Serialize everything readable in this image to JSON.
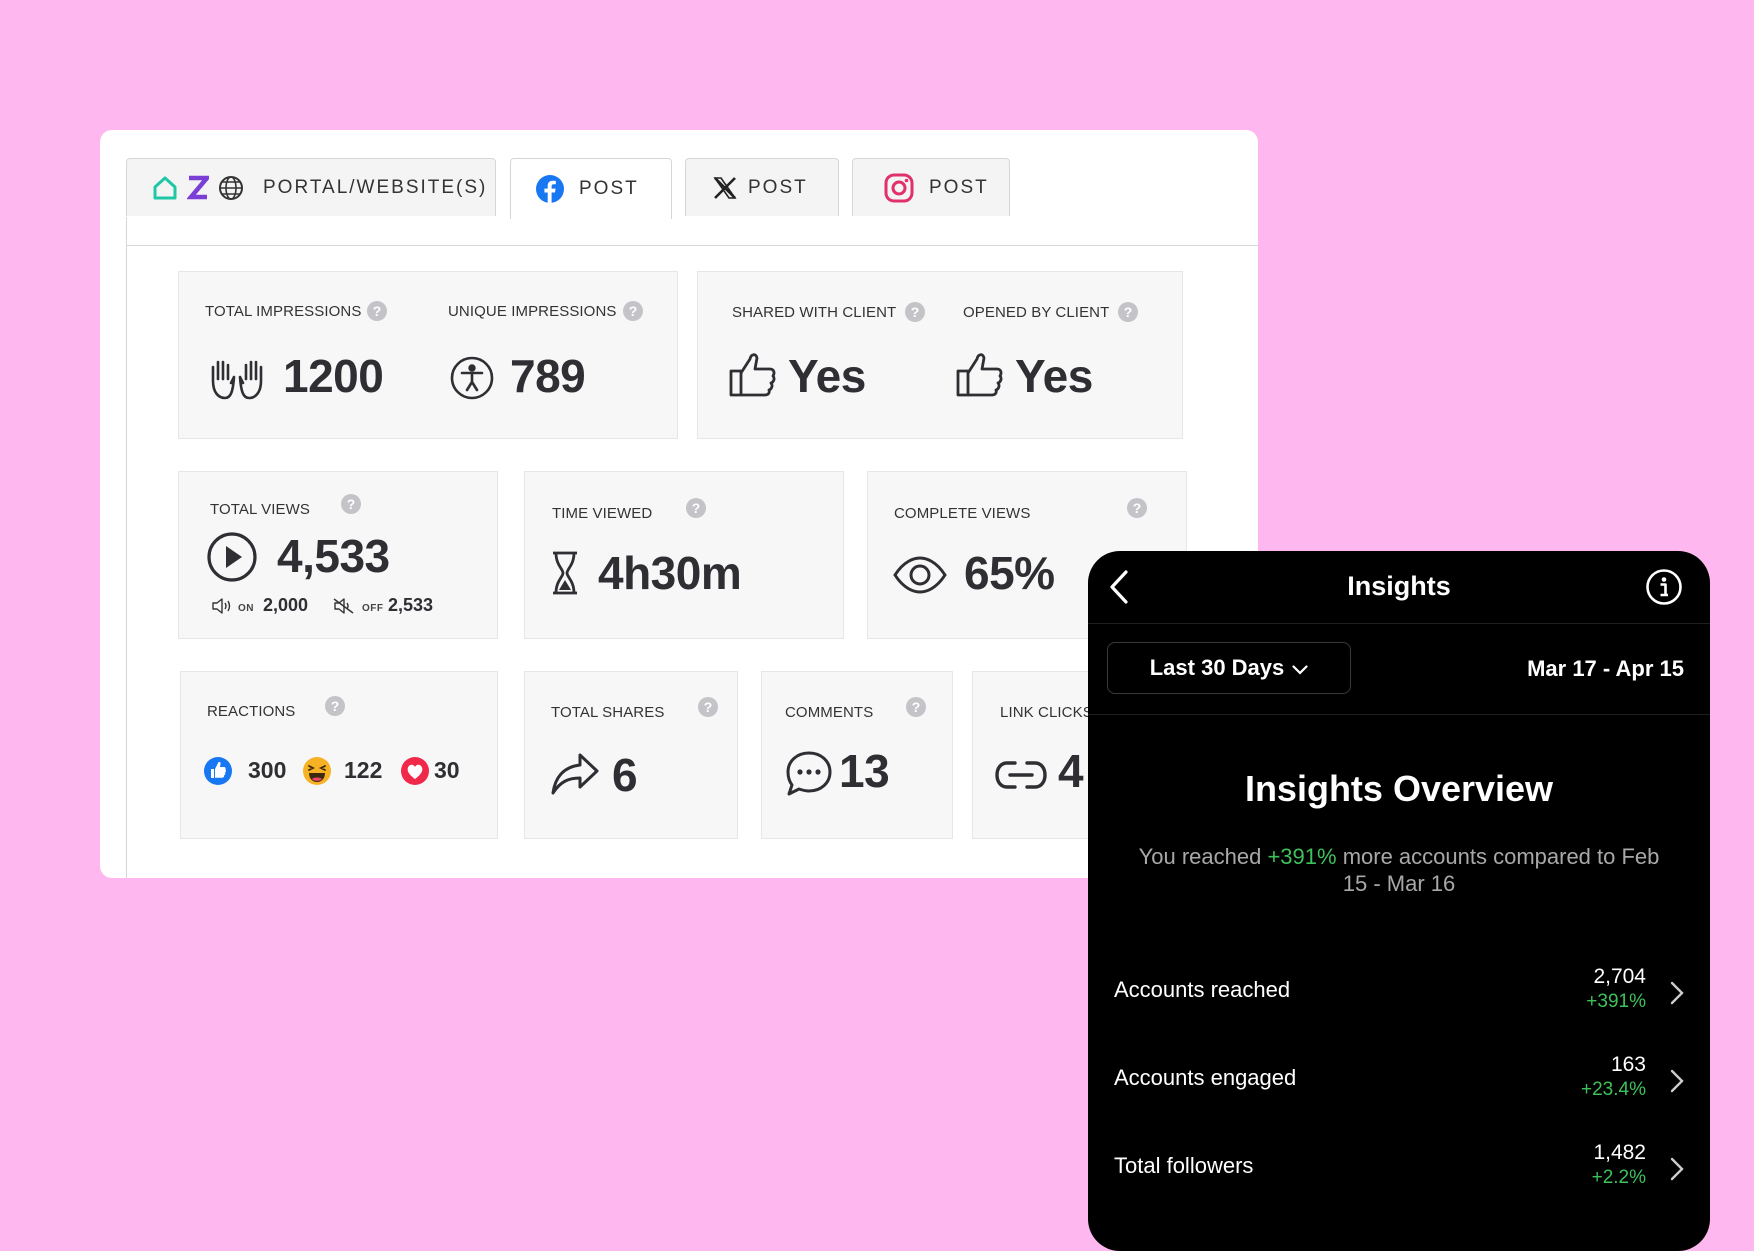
{
  "tabs": {
    "portal_label": "PORTAL/WEBSITE(S)",
    "facebook_label": "POST",
    "x_label": "POST",
    "instagram_label": "POST"
  },
  "metrics": {
    "total_impressions": {
      "label": "TOTAL IMPRESSIONS",
      "value": "1200"
    },
    "unique_impressions": {
      "label": "UNIQUE IMPRESSIONS",
      "value": "789"
    },
    "shared_with_client": {
      "label": "SHARED WITH CLIENT",
      "value": "Yes"
    },
    "opened_by_client": {
      "label": "OPENED BY CLIENT",
      "value": "Yes"
    },
    "total_views": {
      "label": "TOTAL VIEWS",
      "value": "4,533",
      "sound_on_label": "ON",
      "sound_on": "2,000",
      "sound_off_label": "OFF",
      "sound_off": "2,533"
    },
    "time_viewed": {
      "label": "TIME VIEWED",
      "value": "4h30m"
    },
    "complete_views": {
      "label": "COMPLETE VIEWS",
      "value": "65%"
    },
    "reactions": {
      "label": "REACTIONS",
      "like": "300",
      "haha": "122",
      "love": "30"
    },
    "total_shares": {
      "label": "TOTAL SHARES",
      "value": "6"
    },
    "comments": {
      "label": "COMMENTS",
      "value": "13"
    },
    "link_clicks": {
      "label": "LINK CLICKS",
      "value": "4"
    },
    "help_glyph": "?"
  },
  "insights": {
    "title": "Insights",
    "range_select": "Last 30 Days",
    "date_range": "Mar 17 - Apr 15",
    "overview_title": "Insights Overview",
    "reach_prefix": "You reached ",
    "reach_pct": "+391%",
    "reach_suffix": " more accounts compared to Feb 15 - Mar 16",
    "rows": [
      {
        "label": "Accounts reached",
        "value": "2,704",
        "change": "+391%"
      },
      {
        "label": "Accounts engaged",
        "value": "163",
        "change": "+23.4%"
      },
      {
        "label": "Total followers",
        "value": "1,482",
        "change": "+2.2%"
      }
    ]
  },
  "colors": {
    "background": "#ffb8ef",
    "positive": "#3ec15a",
    "facebook": "#1877f2",
    "instagram": "#e1306c"
  }
}
